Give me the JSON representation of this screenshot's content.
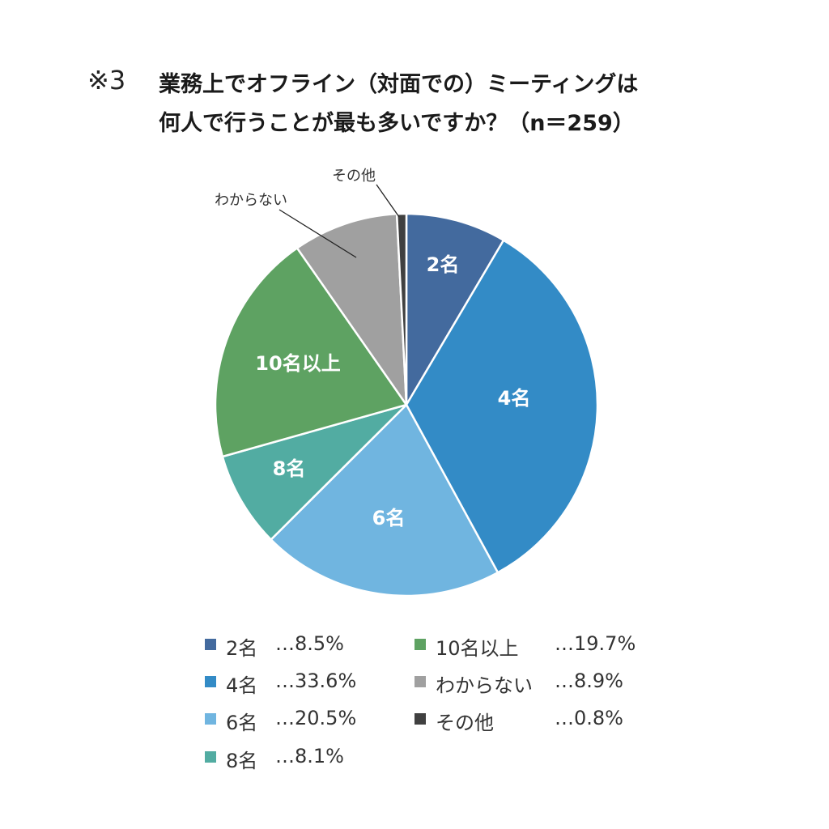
{
  "title": {
    "prefix": "※3",
    "line1": "業務上でオフライン（対面での）ミーティングは",
    "line2": "何人で行うことが最も多いですか？（n＝259）"
  },
  "chart_data": {
    "type": "pie",
    "title": "※3 業務上でオフライン（対面での）ミーティングは何人で行うことが最も多いですか？（n＝259）",
    "start_angle_deg": 0,
    "direction": "clockwise",
    "slices": [
      {
        "label": "2名",
        "value": 8.5,
        "color": "#436a9e",
        "slice_label": "2名",
        "legend_value": "…8.5%"
      },
      {
        "label": "4名",
        "value": 33.6,
        "color": "#338bc6",
        "slice_label": "4名",
        "legend_value": "…33.6%"
      },
      {
        "label": "6名",
        "value": 20.5,
        "color": "#70b5e0",
        "slice_label": "6名",
        "legend_value": "…20.5%"
      },
      {
        "label": "8名",
        "value": 8.1,
        "color": "#52aca2",
        "slice_label": "8名",
        "legend_value": "…8.1%"
      },
      {
        "label": "10名以上",
        "value": 19.7,
        "color": "#5ea262",
        "slice_label": "10名以上",
        "legend_value": "…19.7%"
      },
      {
        "label": "わからない",
        "value": 8.9,
        "color": "#a0a0a0",
        "slice_label": "わからない",
        "legend_value": "…8.9%"
      },
      {
        "label": "その他",
        "value": 0.8,
        "color": "#404040",
        "slice_label": "その他",
        "legend_value": "…0.8%"
      }
    ],
    "legend_position": "bottom"
  }
}
